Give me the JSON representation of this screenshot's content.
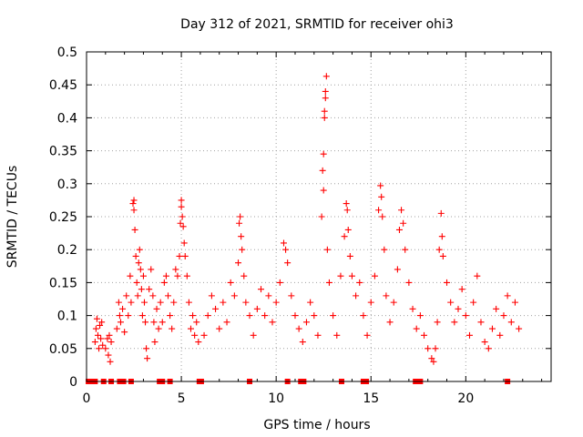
{
  "chart_data": {
    "type": "scatter",
    "title": "Day 312 of 2021, SRMTID for receiver ohi3",
    "xlabel": "GPS time / hours",
    "ylabel": "SRMTID / TECUs",
    "xlim": [
      0,
      24.5
    ],
    "ylim": [
      0,
      0.5
    ],
    "xticks": [
      0,
      5,
      10,
      15,
      20
    ],
    "xtick_labels": [
      "0",
      "5",
      "10",
      "15",
      "20"
    ],
    "yticks": [
      0,
      0.05,
      0.1,
      0.15,
      0.2,
      0.25,
      0.3,
      0.35,
      0.4,
      0.45,
      0.5
    ],
    "ytick_labels": [
      "0",
      "0.05",
      "0.1",
      "0.15",
      "0.2",
      "0.25",
      "0.3",
      "0.35",
      "0.4",
      "0.45",
      "0.5"
    ],
    "grid": true,
    "marker": "+",
    "color": "#ff0000",
    "series": [
      {
        "name": "SRMTID",
        "points": [
          [
            0.45,
            0.06
          ],
          [
            0.5,
            0.08
          ],
          [
            0.55,
            0.095
          ],
          [
            0.6,
            0.07
          ],
          [
            0.65,
            0.05
          ],
          [
            0.7,
            0.085
          ],
          [
            0.75,
            0.065
          ],
          [
            0.8,
            0.09
          ],
          [
            0.85,
            0.055
          ],
          [
            1.0,
            0.05
          ],
          [
            1.1,
            0.065
          ],
          [
            1.15,
            0.04
          ],
          [
            1.2,
            0.07
          ],
          [
            1.25,
            0.03
          ],
          [
            1.3,
            0.06
          ],
          [
            1.6,
            0.08
          ],
          [
            1.7,
            0.12
          ],
          [
            1.75,
            0.1
          ],
          [
            1.8,
            0.09
          ],
          [
            1.9,
            0.11
          ],
          [
            2.0,
            0.075
          ],
          [
            2.1,
            0.13
          ],
          [
            2.2,
            0.1
          ],
          [
            2.3,
            0.16
          ],
          [
            2.35,
            0.12
          ],
          [
            2.45,
            0.27
          ],
          [
            2.5,
            0.275
          ],
          [
            2.5,
            0.26
          ],
          [
            2.55,
            0.23
          ],
          [
            2.6,
            0.19
          ],
          [
            2.65,
            0.15
          ],
          [
            2.7,
            0.13
          ],
          [
            2.75,
            0.18
          ],
          [
            2.8,
            0.2
          ],
          [
            2.85,
            0.17
          ],
          [
            2.9,
            0.14
          ],
          [
            2.95,
            0.1
          ],
          [
            3.0,
            0.16
          ],
          [
            3.05,
            0.12
          ],
          [
            3.1,
            0.09
          ],
          [
            3.15,
            0.05
          ],
          [
            3.2,
            0.035
          ],
          [
            3.3,
            0.14
          ],
          [
            3.4,
            0.17
          ],
          [
            3.5,
            0.13
          ],
          [
            3.55,
            0.09
          ],
          [
            3.6,
            0.06
          ],
          [
            3.7,
            0.11
          ],
          [
            3.8,
            0.08
          ],
          [
            3.9,
            0.12
          ],
          [
            4.0,
            0.09
          ],
          [
            4.1,
            0.15
          ],
          [
            4.2,
            0.16
          ],
          [
            4.3,
            0.13
          ],
          [
            4.4,
            0.1
          ],
          [
            4.5,
            0.08
          ],
          [
            4.6,
            0.12
          ],
          [
            4.7,
            0.17
          ],
          [
            4.8,
            0.16
          ],
          [
            4.9,
            0.19
          ],
          [
            4.95,
            0.24
          ],
          [
            5.0,
            0.275
          ],
          [
            5.0,
            0.265
          ],
          [
            5.05,
            0.25
          ],
          [
            5.1,
            0.235
          ],
          [
            5.15,
            0.21
          ],
          [
            5.2,
            0.19
          ],
          [
            5.3,
            0.16
          ],
          [
            5.4,
            0.12
          ],
          [
            5.5,
            0.08
          ],
          [
            5.6,
            0.1
          ],
          [
            5.7,
            0.07
          ],
          [
            5.8,
            0.09
          ],
          [
            5.9,
            0.06
          ],
          [
            6.2,
            0.07
          ],
          [
            6.4,
            0.1
          ],
          [
            6.6,
            0.13
          ],
          [
            6.8,
            0.11
          ],
          [
            7.0,
            0.08
          ],
          [
            7.2,
            0.12
          ],
          [
            7.4,
            0.09
          ],
          [
            7.6,
            0.15
          ],
          [
            7.8,
            0.13
          ],
          [
            8.0,
            0.18
          ],
          [
            8.05,
            0.24
          ],
          [
            8.1,
            0.25
          ],
          [
            8.15,
            0.22
          ],
          [
            8.2,
            0.2
          ],
          [
            8.3,
            0.16
          ],
          [
            8.4,
            0.12
          ],
          [
            8.6,
            0.1
          ],
          [
            8.8,
            0.07
          ],
          [
            9.0,
            0.11
          ],
          [
            9.2,
            0.14
          ],
          [
            9.4,
            0.1
          ],
          [
            9.6,
            0.13
          ],
          [
            9.8,
            0.09
          ],
          [
            10.0,
            0.12
          ],
          [
            10.2,
            0.15
          ],
          [
            10.4,
            0.21
          ],
          [
            10.5,
            0.2
          ],
          [
            10.6,
            0.18
          ],
          [
            10.8,
            0.13
          ],
          [
            11.0,
            0.1
          ],
          [
            11.2,
            0.08
          ],
          [
            11.4,
            0.06
          ],
          [
            11.6,
            0.09
          ],
          [
            11.8,
            0.12
          ],
          [
            12.0,
            0.1
          ],
          [
            12.2,
            0.07
          ],
          [
            12.4,
            0.25
          ],
          [
            12.45,
            0.32
          ],
          [
            12.5,
            0.345
          ],
          [
            12.5,
            0.29
          ],
          [
            12.55,
            0.4
          ],
          [
            12.55,
            0.41
          ],
          [
            12.6,
            0.43
          ],
          [
            12.6,
            0.44
          ],
          [
            12.65,
            0.463
          ],
          [
            12.7,
            0.2
          ],
          [
            12.8,
            0.15
          ],
          [
            13.0,
            0.1
          ],
          [
            13.2,
            0.07
          ],
          [
            13.4,
            0.16
          ],
          [
            13.6,
            0.22
          ],
          [
            13.7,
            0.27
          ],
          [
            13.75,
            0.26
          ],
          [
            13.8,
            0.23
          ],
          [
            13.9,
            0.19
          ],
          [
            14.0,
            0.16
          ],
          [
            14.2,
            0.13
          ],
          [
            14.4,
            0.15
          ],
          [
            14.6,
            0.1
          ],
          [
            14.8,
            0.07
          ],
          [
            15.0,
            0.12
          ],
          [
            15.2,
            0.16
          ],
          [
            15.4,
            0.26
          ],
          [
            15.5,
            0.297
          ],
          [
            15.55,
            0.28
          ],
          [
            15.6,
            0.25
          ],
          [
            15.7,
            0.2
          ],
          [
            15.8,
            0.13
          ],
          [
            16.0,
            0.09
          ],
          [
            16.2,
            0.12
          ],
          [
            16.4,
            0.17
          ],
          [
            16.5,
            0.23
          ],
          [
            16.6,
            0.26
          ],
          [
            16.7,
            0.24
          ],
          [
            16.8,
            0.2
          ],
          [
            17.0,
            0.15
          ],
          [
            17.2,
            0.11
          ],
          [
            17.4,
            0.08
          ],
          [
            17.6,
            0.1
          ],
          [
            17.8,
            0.07
          ],
          [
            18.0,
            0.05
          ],
          [
            18.2,
            0.035
          ],
          [
            18.3,
            0.03
          ],
          [
            18.4,
            0.05
          ],
          [
            18.5,
            0.09
          ],
          [
            18.6,
            0.2
          ],
          [
            18.7,
            0.255
          ],
          [
            18.75,
            0.22
          ],
          [
            18.8,
            0.19
          ],
          [
            19.0,
            0.15
          ],
          [
            19.2,
            0.12
          ],
          [
            19.4,
            0.09
          ],
          [
            19.6,
            0.11
          ],
          [
            19.8,
            0.14
          ],
          [
            20.0,
            0.1
          ],
          [
            20.2,
            0.07
          ],
          [
            20.4,
            0.12
          ],
          [
            20.6,
            0.16
          ],
          [
            20.8,
            0.09
          ],
          [
            21.0,
            0.06
          ],
          [
            21.2,
            0.05
          ],
          [
            21.4,
            0.08
          ],
          [
            21.6,
            0.11
          ],
          [
            21.8,
            0.07
          ],
          [
            22.0,
            0.1
          ],
          [
            22.2,
            0.13
          ],
          [
            22.4,
            0.09
          ],
          [
            22.6,
            0.12
          ],
          [
            22.8,
            0.08
          ]
        ]
      }
    ],
    "zero_markers": [
      0.1,
      0.2,
      0.3,
      0.45,
      0.9,
      1.3,
      1.75,
      1.95,
      2.35,
      3.85,
      4.0,
      4.4,
      5.95,
      6.05,
      8.6,
      10.6,
      11.3,
      11.45,
      13.45,
      14.6,
      14.75,
      17.35,
      17.6,
      22.2
    ]
  }
}
